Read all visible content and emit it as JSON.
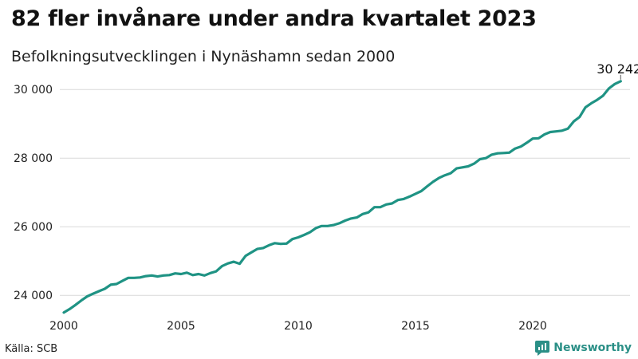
{
  "title": "82 fler invånare under andra kvartalet 2023",
  "subtitle": "Befolkningsutvecklingen i Nynäshamn sedan 2000",
  "source": "Källa: SCB",
  "brand": "Newsworthy",
  "colors": {
    "line": "#1f9384",
    "grid": "#d9d9d9",
    "brand": "#2a8f86"
  },
  "chart_data": {
    "type": "line",
    "title": "82 fler invånare under andra kvartalet 2023",
    "subtitle": "Befolkningsutvecklingen i Nynäshamn sedan 2000",
    "xlabel": "",
    "ylabel": "",
    "xlim": [
      2000,
      2024
    ],
    "ylim": [
      23400,
      30400
    ],
    "y_ticks": [
      24000,
      26000,
      28000,
      30000
    ],
    "y_tick_labels": [
      "24 000",
      "26 000",
      "28 000",
      "30 000"
    ],
    "x_ticks": [
      2000,
      2005,
      2010,
      2015,
      2020
    ],
    "x_tick_labels": [
      "2000",
      "2005",
      "2010",
      "2015",
      "2020"
    ],
    "grid": true,
    "end_label": "30 242",
    "series": [
      {
        "values": [
          [
            2000.0,
            23500
          ],
          [
            2000.25,
            23600
          ],
          [
            2000.5,
            23720
          ],
          [
            2000.75,
            23850
          ],
          [
            2001.0,
            23970
          ],
          [
            2001.25,
            24050
          ],
          [
            2001.5,
            24120
          ],
          [
            2001.75,
            24190
          ],
          [
            2002.0,
            24310
          ],
          [
            2002.25,
            24330
          ],
          [
            2002.5,
            24420
          ],
          [
            2002.75,
            24510
          ],
          [
            2003.0,
            24510
          ],
          [
            2003.25,
            24520
          ],
          [
            2003.5,
            24560
          ],
          [
            2003.75,
            24580
          ],
          [
            2004.0,
            24550
          ],
          [
            2004.25,
            24580
          ],
          [
            2004.5,
            24590
          ],
          [
            2004.75,
            24640
          ],
          [
            2005.0,
            24620
          ],
          [
            2005.25,
            24660
          ],
          [
            2005.5,
            24590
          ],
          [
            2005.75,
            24620
          ],
          [
            2006.0,
            24580
          ],
          [
            2006.25,
            24650
          ],
          [
            2006.5,
            24700
          ],
          [
            2006.75,
            24850
          ],
          [
            2007.0,
            24930
          ],
          [
            2007.25,
            24980
          ],
          [
            2007.5,
            24920
          ],
          [
            2007.75,
            25150
          ],
          [
            2008.0,
            25250
          ],
          [
            2008.25,
            25350
          ],
          [
            2008.5,
            25380
          ],
          [
            2008.75,
            25460
          ],
          [
            2009.0,
            25520
          ],
          [
            2009.25,
            25500
          ],
          [
            2009.5,
            25510
          ],
          [
            2009.75,
            25640
          ],
          [
            2010.0,
            25690
          ],
          [
            2010.25,
            25760
          ],
          [
            2010.5,
            25840
          ],
          [
            2010.75,
            25960
          ],
          [
            2011.0,
            26020
          ],
          [
            2011.25,
            26020
          ],
          [
            2011.5,
            26050
          ],
          [
            2011.75,
            26100
          ],
          [
            2012.0,
            26180
          ],
          [
            2012.25,
            26240
          ],
          [
            2012.5,
            26270
          ],
          [
            2012.75,
            26370
          ],
          [
            2013.0,
            26420
          ],
          [
            2013.25,
            26570
          ],
          [
            2013.5,
            26570
          ],
          [
            2013.75,
            26650
          ],
          [
            2014.0,
            26680
          ],
          [
            2014.25,
            26780
          ],
          [
            2014.5,
            26810
          ],
          [
            2014.75,
            26880
          ],
          [
            2015.0,
            26960
          ],
          [
            2015.25,
            27040
          ],
          [
            2015.5,
            27180
          ],
          [
            2015.75,
            27310
          ],
          [
            2016.0,
            27420
          ],
          [
            2016.25,
            27500
          ],
          [
            2016.5,
            27560
          ],
          [
            2016.75,
            27700
          ],
          [
            2017.0,
            27730
          ],
          [
            2017.25,
            27760
          ],
          [
            2017.5,
            27840
          ],
          [
            2017.75,
            27970
          ],
          [
            2018.0,
            28000
          ],
          [
            2018.25,
            28100
          ],
          [
            2018.5,
            28140
          ],
          [
            2018.75,
            28150
          ],
          [
            2019.0,
            28160
          ],
          [
            2019.25,
            28280
          ],
          [
            2019.5,
            28340
          ],
          [
            2019.75,
            28450
          ],
          [
            2020.0,
            28570
          ],
          [
            2020.25,
            28580
          ],
          [
            2020.5,
            28690
          ],
          [
            2020.75,
            28760
          ],
          [
            2021.0,
            28780
          ],
          [
            2021.25,
            28800
          ],
          [
            2021.5,
            28860
          ],
          [
            2021.75,
            29070
          ],
          [
            2022.0,
            29200
          ],
          [
            2022.25,
            29480
          ],
          [
            2022.5,
            29600
          ],
          [
            2022.75,
            29700
          ],
          [
            2023.0,
            29820
          ],
          [
            2023.25,
            30030
          ],
          [
            2023.5,
            30160
          ],
          [
            2023.75,
            30242
          ]
        ]
      }
    ]
  }
}
